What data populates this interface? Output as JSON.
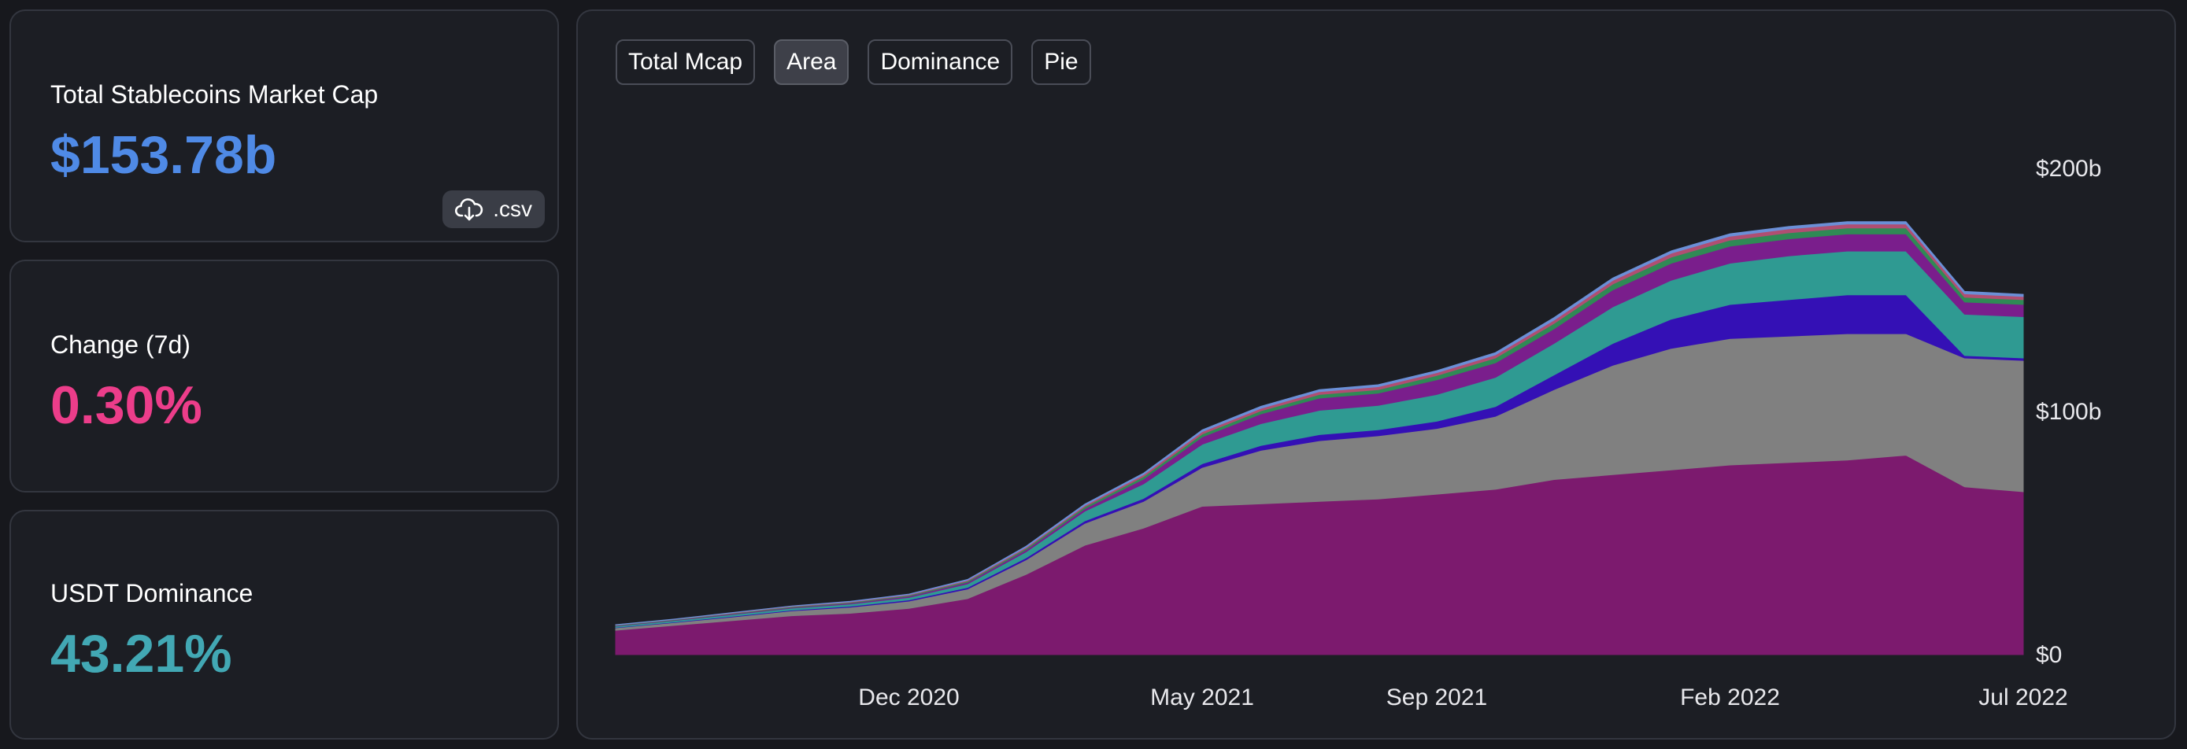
{
  "stats": {
    "total_mcap_label": "Total Stablecoins Market Cap",
    "total_mcap_value": "$153.78b",
    "csv_label": ".csv",
    "change_label": "Change (7d)",
    "change_value": "0.30%",
    "dominance_label": "USDT Dominance",
    "dominance_value": "43.21%"
  },
  "colors": {
    "total_mcap_value": "#4f8ae6",
    "change_value": "#ec3d8a",
    "dominance_value": "#42a8b4"
  },
  "tabs": [
    {
      "label": "Total Mcap",
      "active": false
    },
    {
      "label": "Area",
      "active": true
    },
    {
      "label": "Dominance",
      "active": false
    },
    {
      "label": "Pie",
      "active": false
    }
  ],
  "chart_data": {
    "type": "area",
    "stacked": true,
    "x": [
      "2020-07",
      "2020-08",
      "2020-09",
      "2020-10",
      "2020-11",
      "2020-12",
      "2021-01",
      "2021-02",
      "2021-03",
      "2021-04",
      "2021-05",
      "2021-06",
      "2021-07",
      "2021-08",
      "2021-09",
      "2021-10",
      "2021-11",
      "2021-12",
      "2022-01",
      "2022-02",
      "2022-03",
      "2022-04",
      "2022-05",
      "2022-06",
      "2022-07"
    ],
    "x_tick_labels": [
      {
        "x": "2020-12",
        "label": "Dec 2020"
      },
      {
        "x": "2021-05",
        "label": "May 2021"
      },
      {
        "x": "2021-09",
        "label": "Sep 2021"
      },
      {
        "x": "2022-02",
        "label": "Feb 2022"
      },
      {
        "x": "2022-07",
        "label": "Jul 2022"
      }
    ],
    "y_ticks": [
      {
        "value": 0,
        "label": "$0"
      },
      {
        "value": 100,
        "label": "$100b"
      },
      {
        "value": 200,
        "label": "$200b"
      }
    ],
    "ylim": [
      0,
      200
    ],
    "grid": false,
    "series": [
      {
        "color": "#7c1a6e",
        "values": [
          10,
          12,
          14,
          16,
          17,
          19,
          23,
          33,
          45,
          52,
          61,
          62,
          63,
          64,
          66,
          68,
          72,
          74,
          76,
          78,
          79,
          80,
          82,
          69,
          67
        ]
      },
      {
        "color": "#808080",
        "values": [
          1,
          1.2,
          1.5,
          2,
          2.5,
          3,
          4,
          6,
          9,
          11,
          16,
          22,
          25,
          26,
          27,
          30,
          37,
          45,
          50,
          52,
          52,
          52,
          50,
          53,
          54
        ]
      },
      {
        "color": "#3410b5",
        "values": [
          0.2,
          0.2,
          0.3,
          0.3,
          0.4,
          0.5,
          0.6,
          0.8,
          1,
          1.2,
          1.5,
          2,
          2.5,
          2.5,
          3,
          4,
          6,
          9,
          12,
          14,
          15,
          16,
          16,
          1,
          1
        ]
      },
      {
        "color": "#2f9a92",
        "values": [
          0.5,
          0.6,
          0.7,
          0.8,
          0.9,
          1,
          1.5,
          2.5,
          4,
          6,
          8,
          9,
          10,
          10,
          11,
          12,
          13,
          15,
          16,
          17,
          18,
          18,
          18,
          17,
          17
        ]
      },
      {
        "color": "#7a1e8c",
        "values": [
          0.2,
          0.2,
          0.3,
          0.3,
          0.4,
          0.5,
          0.6,
          0.8,
          1,
          2,
          3,
          4,
          5,
          5,
          6,
          6,
          6,
          7,
          7,
          7,
          7,
          7,
          7,
          5,
          5
        ]
      },
      {
        "color": "#2f8a55",
        "values": [
          0.2,
          0.2,
          0.2,
          0.3,
          0.3,
          0.4,
          0.5,
          0.6,
          0.8,
          1,
          1.2,
          1.3,
          1.5,
          1.5,
          1.8,
          2,
          2.2,
          2.4,
          2.5,
          2.5,
          2.5,
          2.5,
          2.5,
          2,
          2
        ]
      },
      {
        "color": "#b04e72",
        "values": [
          0.1,
          0.1,
          0.2,
          0.2,
          0.2,
          0.3,
          0.4,
          0.5,
          0.6,
          0.8,
          1,
          1,
          1.2,
          1.2,
          1.2,
          1.3,
          1.4,
          1.5,
          1.6,
          1.6,
          1.6,
          1.6,
          1.6,
          1.4,
          1.3
        ]
      },
      {
        "color": "#6b8fd6",
        "values": [
          0.1,
          0.1,
          0.1,
          0.1,
          0.2,
          0.2,
          0.3,
          0.4,
          0.5,
          0.6,
          0.7,
          0.8,
          0.8,
          0.8,
          0.8,
          0.9,
          1,
          1,
          1,
          1,
          1,
          1,
          1,
          1,
          0.9
        ]
      }
    ]
  }
}
